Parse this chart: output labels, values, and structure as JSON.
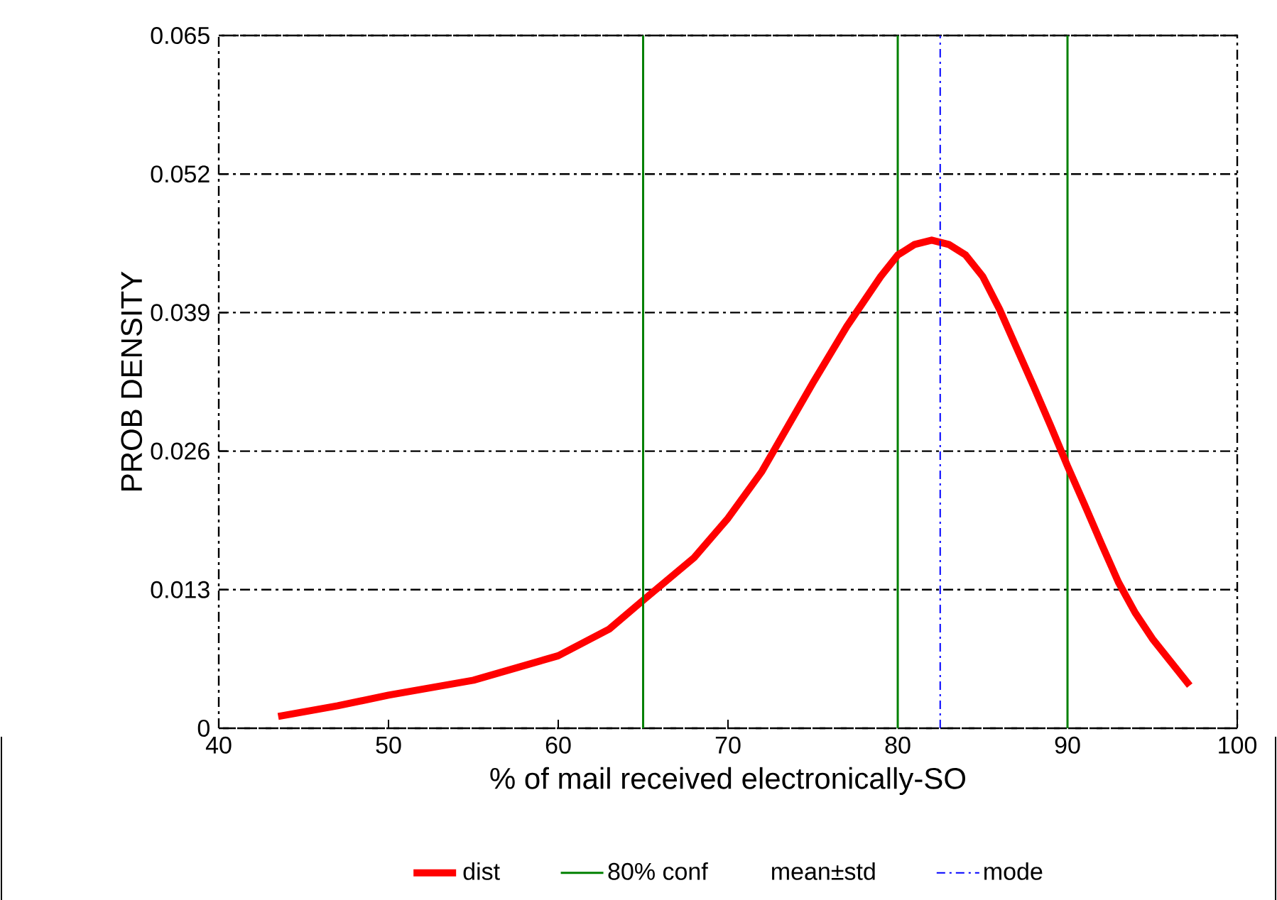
{
  "chart_data": {
    "type": "line",
    "xlabel": "% of mail received electronically-SO",
    "ylabel": "PROB DENSITY",
    "xlim": [
      40,
      100
    ],
    "xticks": [
      40,
      50,
      60,
      70,
      80,
      90,
      100
    ],
    "ylim": [
      0,
      0.065
    ],
    "yticks": [
      0,
      0.013,
      0.026,
      0.039,
      0.052,
      0.065
    ],
    "grid": "y",
    "legend": "bottom",
    "marker": "none",
    "annotations": [
      "mean±std"
    ],
    "ref_lines": [
      {
        "axis": "x",
        "value": 80,
        "color": "#008000",
        "line_style": "solid"
      },
      {
        "axis": "x",
        "value": 90,
        "color": "#008000",
        "line_style": "solid"
      }
    ],
    "series": [
      {
        "name": "dist",
        "color": "#ff0000",
        "line_style": "solid",
        "x": [
          43.5,
          47,
          50,
          55,
          60,
          63,
          65,
          68,
          70,
          72,
          75,
          77,
          79,
          80,
          81,
          82,
          83,
          84,
          85,
          86,
          87,
          88,
          89,
          90,
          91,
          92,
          93,
          94,
          95,
          96,
          97.2
        ],
        "values": [
          0.0011,
          0.0021,
          0.0031,
          0.0045,
          0.0068,
          0.0093,
          0.012,
          0.016,
          0.0197,
          0.0241,
          0.0324,
          0.0377,
          0.0424,
          0.0444,
          0.0454,
          0.0458,
          0.0454,
          0.0444,
          0.0424,
          0.0393,
          0.0357,
          0.0321,
          0.0284,
          0.0246,
          0.021,
          0.0173,
          0.0137,
          0.0108,
          0.0084,
          0.0064,
          0.004
        ]
      },
      {
        "name": "80% conf",
        "color": "#008000",
        "line_style": "solid",
        "x": [
          65,
          65
        ],
        "values": [
          0,
          0.065
        ]
      },
      {
        "name": "mode",
        "color": "#0000ff",
        "line_style": "dashed",
        "x": [
          82.5,
          82.5
        ],
        "values": [
          0,
          0.065
        ]
      }
    ]
  }
}
